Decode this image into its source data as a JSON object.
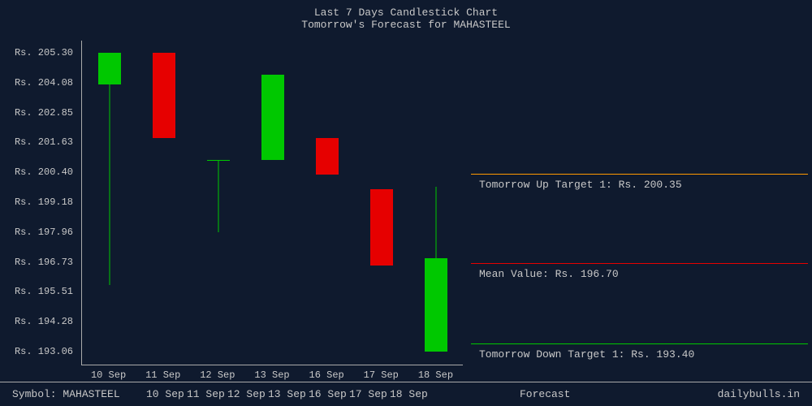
{
  "title_line1": "Last 7 Days Candlestick Chart",
  "title_line2": "Tomorrow's Forecast for MAHASTEEL",
  "chart": {
    "type": "candlestick",
    "background_color": "#0f1a2e",
    "text_color": "#c8c8c8",
    "axis_color": "#aaaaaa",
    "up_color": "#00c800",
    "down_color": "#e60000",
    "font_family": "Courier New",
    "font_size": 12,
    "y_min": 192.5,
    "y_max": 205.8,
    "y_ticks": [
      205.3,
      204.08,
      202.85,
      201.63,
      200.4,
      199.18,
      197.96,
      196.73,
      195.51,
      194.28,
      193.06
    ],
    "y_prefix": "Rs. ",
    "x_labels": [
      "10 Sep",
      "11 Sep",
      "12 Sep",
      "13 Sep",
      "16 Sep",
      "17 Sep",
      "18 Sep"
    ],
    "candle_width": 28,
    "candles": [
      {
        "open": 204.0,
        "close": 205.3,
        "high": 205.3,
        "low": 195.8,
        "dir": "up"
      },
      {
        "open": 205.3,
        "close": 201.8,
        "high": 205.3,
        "low": 201.8,
        "dir": "down"
      },
      {
        "open": 200.9,
        "close": 200.9,
        "high": 200.9,
        "low": 197.96,
        "dir": "up"
      },
      {
        "open": 200.9,
        "close": 204.4,
        "high": 204.4,
        "low": 200.9,
        "dir": "up"
      },
      {
        "open": 201.8,
        "close": 200.3,
        "high": 201.8,
        "low": 200.3,
        "dir": "down"
      },
      {
        "open": 199.7,
        "close": 196.6,
        "high": 199.7,
        "low": 196.6,
        "dir": "down"
      },
      {
        "open": 193.06,
        "close": 196.9,
        "high": 199.8,
        "low": 193.06,
        "dir": "up"
      }
    ]
  },
  "forecast": {
    "up": {
      "label": "Tomorrow Up Target 1: Rs. 200.35",
      "value": 200.35,
      "color": "#ff9900"
    },
    "mean": {
      "label": "Mean Value: Rs. 196.70",
      "value": 196.7,
      "color": "#e60000"
    },
    "down": {
      "label": "Tomorrow Down Target 1: Rs. 193.40",
      "value": 193.4,
      "color": "#00c800"
    }
  },
  "footer": {
    "symbol_label": "Symbol:",
    "symbol": "MAHASTEEL",
    "forecast_label": "Forecast",
    "site": "dailybulls.in"
  }
}
